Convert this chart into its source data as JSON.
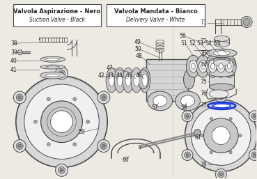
{
  "bg_color": "#ede9e3",
  "line_color": "#4a4a4a",
  "blue_color": "#1a3adb",
  "box1_line1": "Valvola Aspirazione - Nero",
  "box1_line2": "Suction Valve - Black",
  "box2_line1": "Valvola Mandata - Bianco",
  "box2_line2": "Delivery Valve - White",
  "figw": 3.69,
  "figh": 2.57,
  "dpi": 100
}
